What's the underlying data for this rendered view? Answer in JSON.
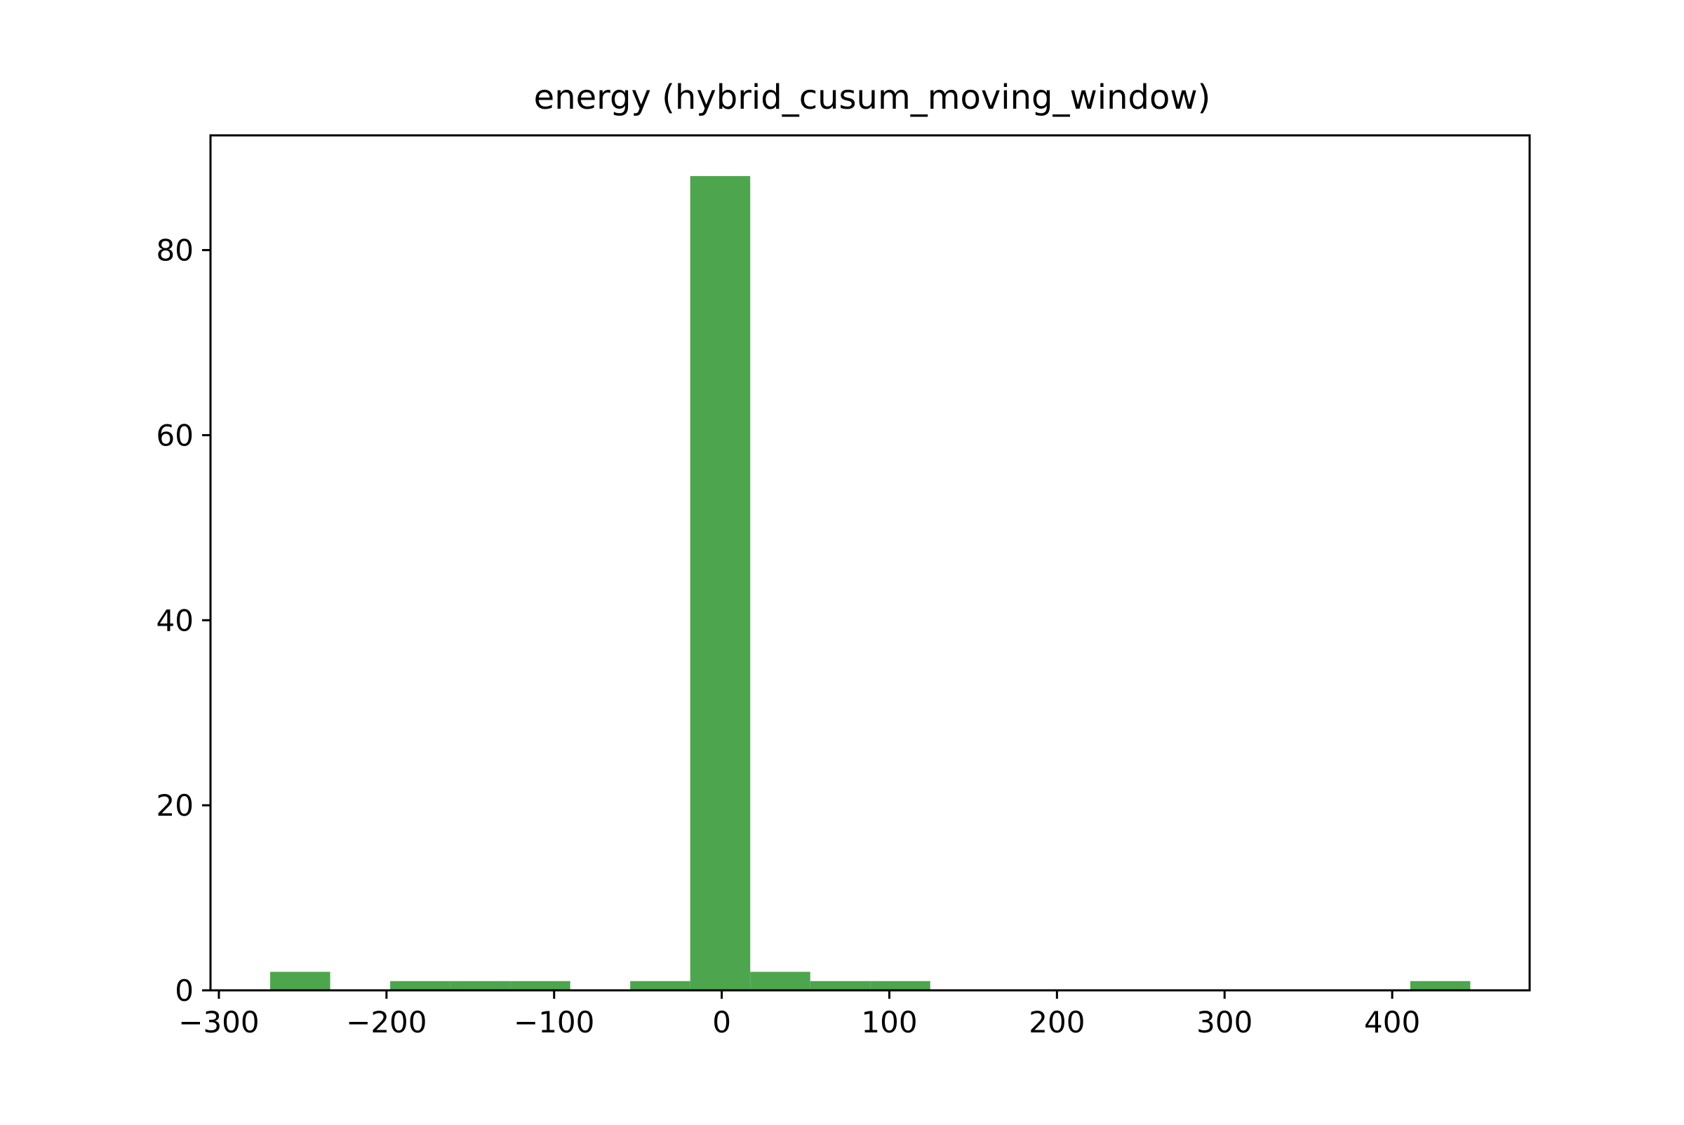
{
  "chart_data": {
    "type": "bar",
    "title": "energy (hybrid_cusum_moving_window)",
    "xlabel": "",
    "ylabel": "",
    "xlim": [
      -305,
      482
    ],
    "ylim": [
      0,
      92.4
    ],
    "x_ticks": [
      -300,
      -200,
      -100,
      0,
      100,
      200,
      300,
      400
    ],
    "x_tick_labels": [
      "−300",
      "−200",
      "−100",
      "0",
      "100",
      "200",
      "300",
      "400"
    ],
    "y_ticks": [
      0,
      20,
      40,
      60,
      80
    ],
    "y_tick_labels": [
      "0",
      "20",
      "40",
      "60",
      "80"
    ],
    "bin_edges": [
      -269.4,
      -233.6,
      -197.8,
      -162.0,
      -126.2,
      -90.4,
      -54.6,
      -18.8,
      17.0,
      52.8,
      88.6,
      124.4,
      160.2,
      196.0,
      231.8,
      267.6,
      303.4,
      339.2,
      375.0,
      410.8,
      446.6
    ],
    "values": [
      2,
      0,
      1,
      1,
      1,
      0,
      1,
      88,
      2,
      1,
      1,
      0,
      0,
      0,
      0,
      0,
      0,
      0,
      0,
      1
    ],
    "bar_color": "#4da64d",
    "grid": false,
    "legend": "none"
  }
}
